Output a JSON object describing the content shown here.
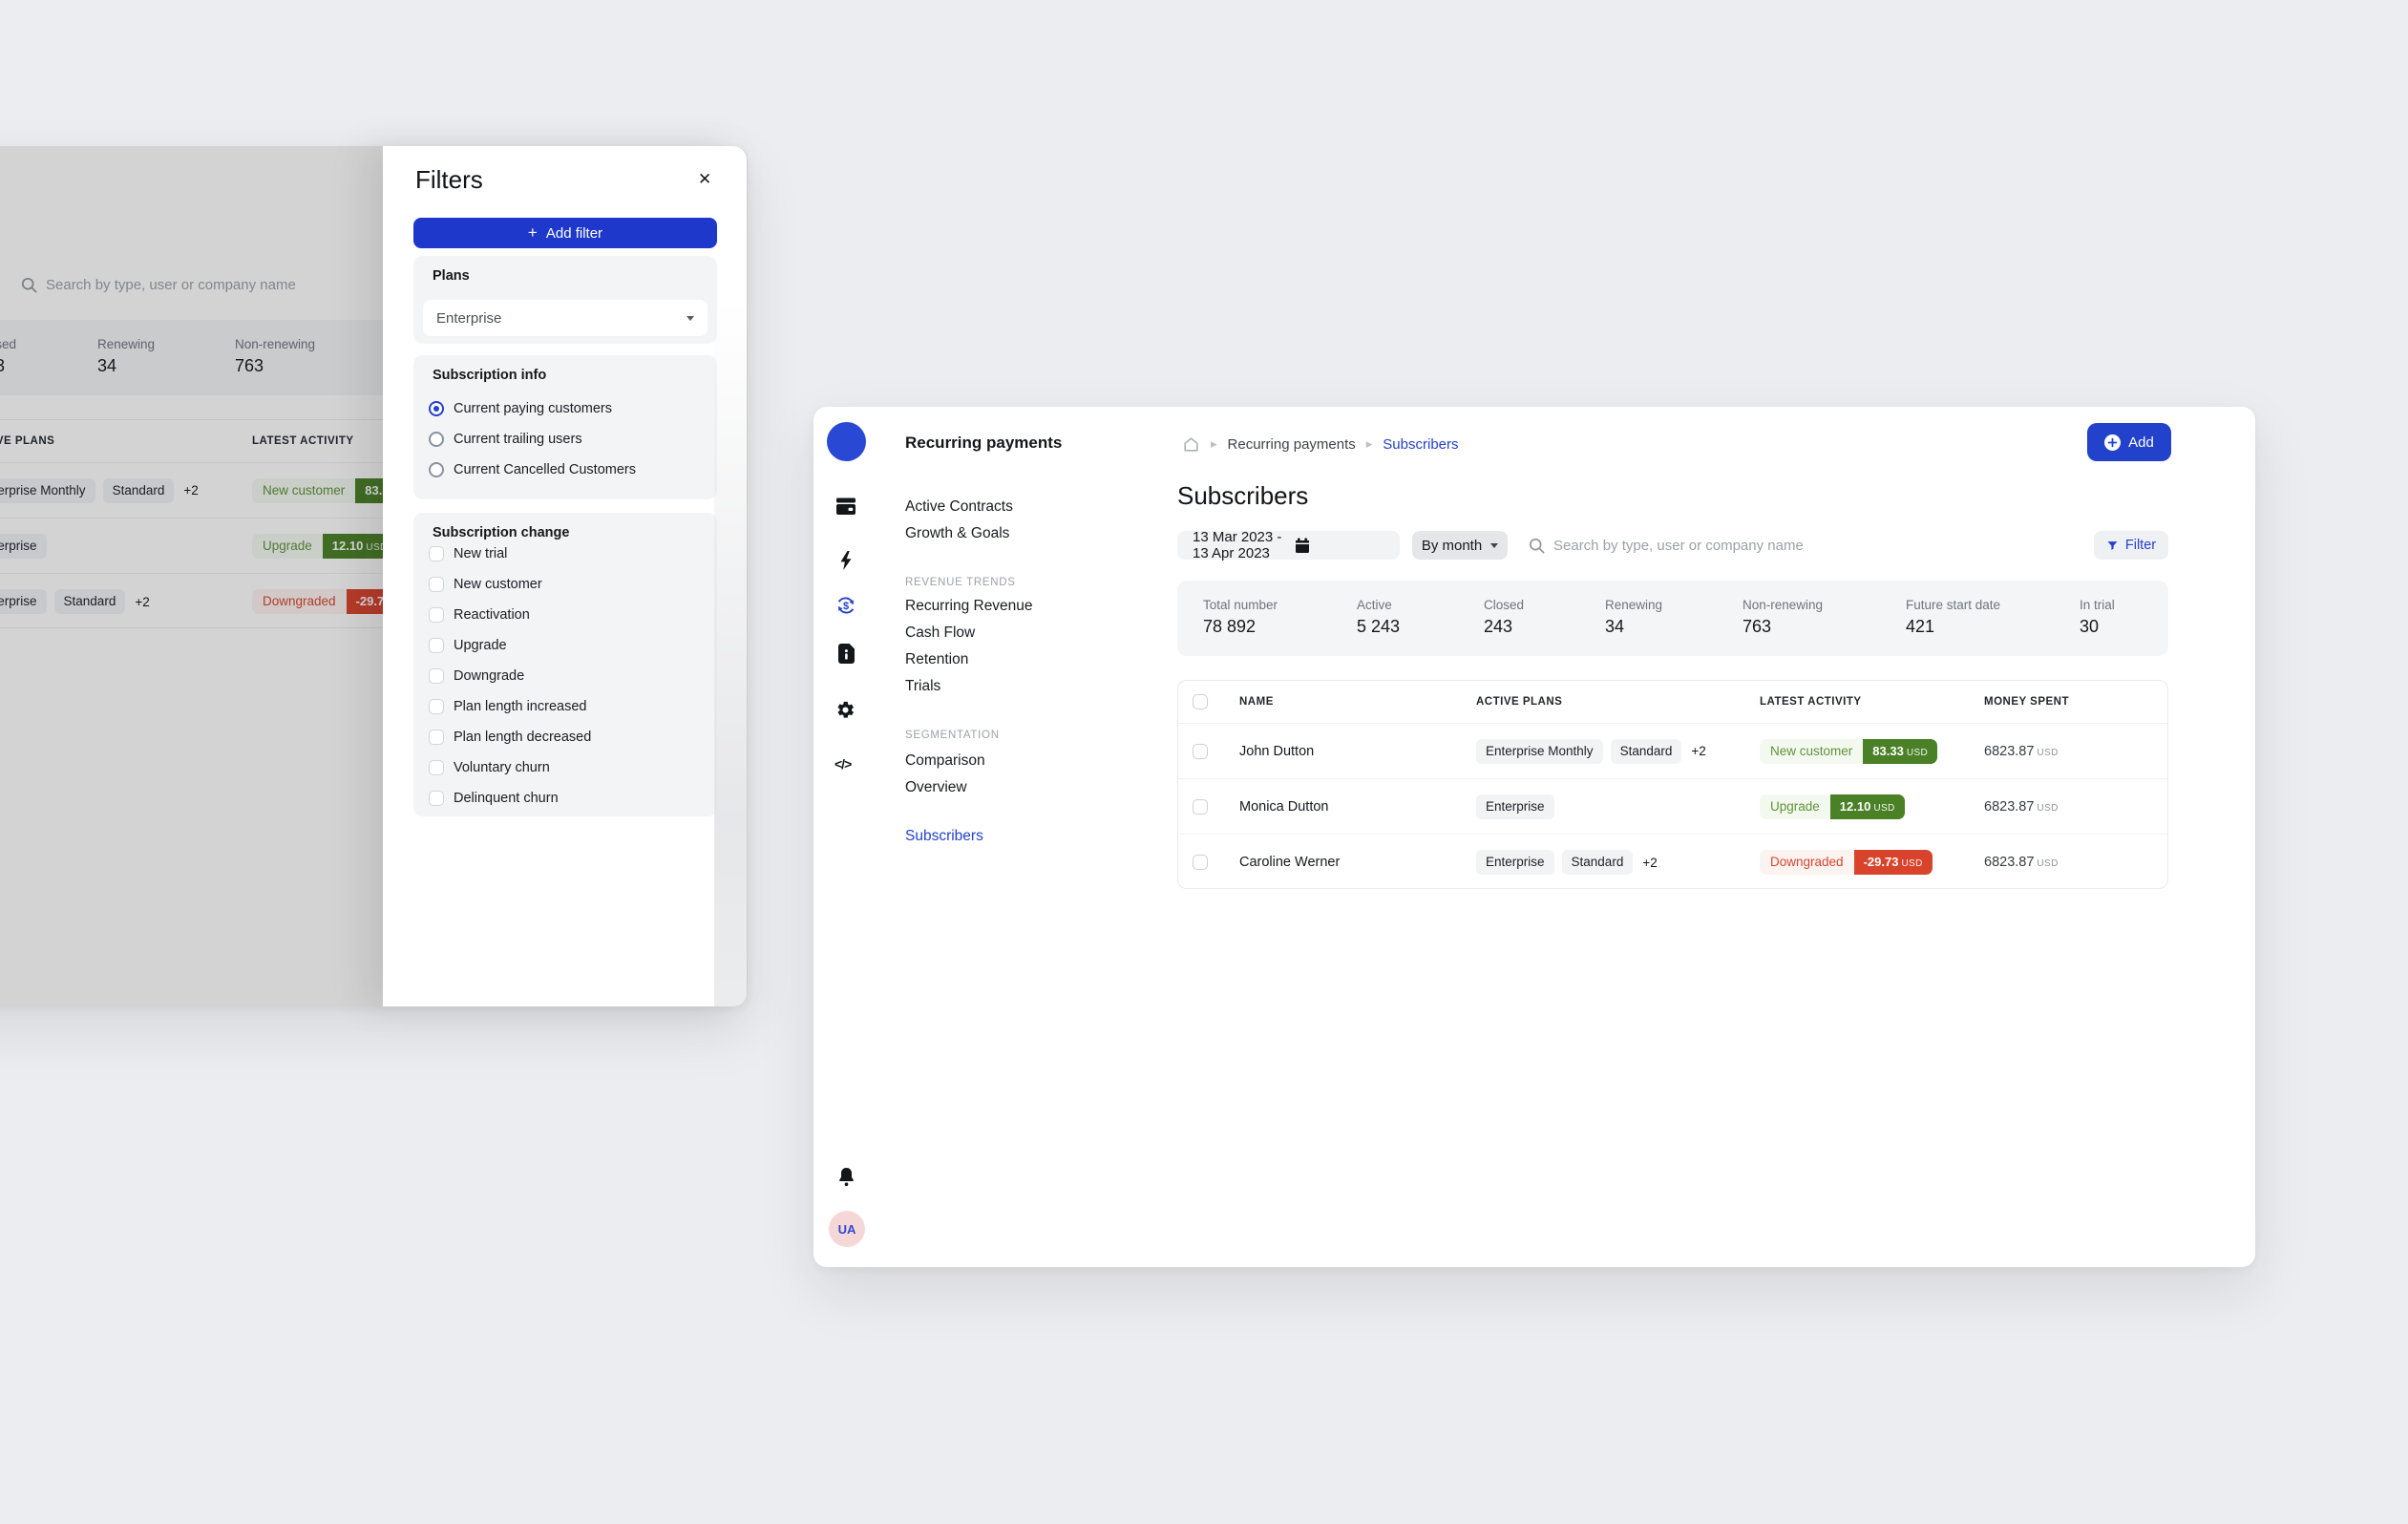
{
  "colors": {
    "backdrop": "#ecedf0",
    "primary_blue": "#2342cc",
    "green_badge_solid": "#4a8126",
    "green_badge_text": "#5f9139",
    "green_badge_bg": "#f4f9f0",
    "red_badge_solid": "#d9432c",
    "red_badge_text": "#d5462e",
    "red_badge_bg": "#fdf3f1",
    "chip_gray": "#f2f3f5",
    "stats_bg": "#f4f5f7",
    "avatar_pink": "#f6d7d8"
  },
  "app": {
    "title": "Recurring payments",
    "breadcrumb": {
      "crumb1": "Recurring payments",
      "crumb2": "Subscribers"
    },
    "add_button": "Add",
    "avatar_initials": "UA",
    "nav": {
      "group1": {
        "items": [
          "Active Contracts",
          "Growth & Goals"
        ]
      },
      "group2": {
        "heading": "REVENUE TRENDS",
        "items": [
          "Recurring Revenue",
          "Cash Flow",
          "Retention",
          "Trials"
        ]
      },
      "group3": {
        "heading": "SEGMENTATION",
        "items": [
          "Comparison",
          "Overview"
        ]
      },
      "group4": {
        "items": [
          "Subscribers"
        ]
      }
    }
  },
  "page": {
    "title": "Subscribers",
    "date_range": "13 Mar 2023 - 13 Apr 2023",
    "granularity": "By month",
    "search_placeholder": "Search by type, user or company name",
    "filter_button": "Filter",
    "stats": [
      {
        "label": "Total number",
        "value": "78 892"
      },
      {
        "label": "Active",
        "value": "5 243"
      },
      {
        "label": "Closed",
        "value": "243"
      },
      {
        "label": "Renewing",
        "value": "34"
      },
      {
        "label": "Non-renewing",
        "value": "763"
      },
      {
        "label": "Future start date",
        "value": "421"
      },
      {
        "label": "In trial",
        "value": "30"
      }
    ],
    "table": {
      "headers": [
        "NAME",
        "ACTIVE PLANS",
        "LATEST ACTIVITY",
        "MONEY SPENT"
      ],
      "rows": [
        {
          "name": "John Dutton",
          "plans": [
            "Enterprise Monthly",
            "Standard"
          ],
          "plans_more": "+2",
          "activity": {
            "label": "New customer",
            "amount": "83.33",
            "currency": "USD",
            "type": "positive"
          },
          "money": "6823.87",
          "money_currency": "USD"
        },
        {
          "name": "Monica Dutton",
          "plans": [
            "Enterprise"
          ],
          "plans_more": "",
          "activity": {
            "label": "Upgrade",
            "amount": "12.10",
            "currency": "USD",
            "type": "positive"
          },
          "money": "6823.87",
          "money_currency": "USD"
        },
        {
          "name": "Caroline Werner",
          "plans": [
            "Enterprise",
            "Standard"
          ],
          "plans_more": "+2",
          "activity": {
            "label": "Downgraded",
            "amount": "-29.73",
            "currency": "USD",
            "type": "negative"
          },
          "money": "6823.87",
          "money_currency": "USD"
        }
      ]
    }
  },
  "filters": {
    "title": "Filters",
    "add_button": "Add filter",
    "plans": {
      "label": "Plans",
      "selected": "Enterprise"
    },
    "subscription_info": {
      "title": "Subscription info",
      "options": [
        "Current paying customers",
        "Current trailing users",
        "Current Cancelled Customers"
      ],
      "selected": "Current paying customers"
    },
    "subscription_change": {
      "title": "Subscription change",
      "options": [
        "New trial",
        "New customer",
        "Reactivation",
        "Upgrade",
        "Downgrade",
        "Plan length increased",
        "Plan length decreased",
        "Voluntary churn",
        "Delinquent churn"
      ]
    }
  }
}
